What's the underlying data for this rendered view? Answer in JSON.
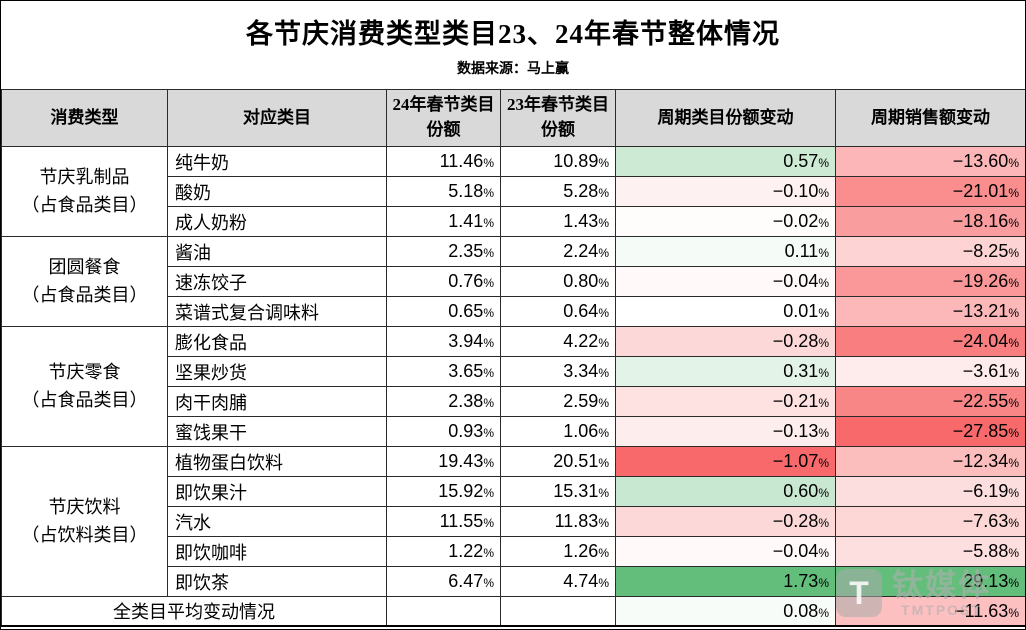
{
  "chart_data": {
    "type": "table",
    "title": "各节庆消费类型类目23、24年春节整体情况",
    "source_note": "数据来源：马上赢",
    "columns": [
      "消费类型",
      "对应类目",
      "24年春节类目份额",
      "23年春节类目份额",
      "周期类目份额变动",
      "周期销售额变动"
    ],
    "groups": [
      {
        "type": "节庆乳制品",
        "type_note": "（占食品类目）",
        "rows": [
          {
            "category": "纯牛奶",
            "share24": 11.46,
            "share23": 10.89,
            "share_change": 0.57,
            "sales_change": -13.6
          },
          {
            "category": "酸奶",
            "share24": 5.18,
            "share23": 5.28,
            "share_change": -0.1,
            "sales_change": -21.01
          },
          {
            "category": "成人奶粉",
            "share24": 1.41,
            "share23": 1.43,
            "share_change": -0.02,
            "sales_change": -18.16
          }
        ]
      },
      {
        "type": "团圆餐食",
        "type_note": "（占食品类目）",
        "rows": [
          {
            "category": "酱油",
            "share24": 2.35,
            "share23": 2.24,
            "share_change": 0.11,
            "sales_change": -8.25
          },
          {
            "category": "速冻饺子",
            "share24": 0.76,
            "share23": 0.8,
            "share_change": -0.04,
            "sales_change": -19.26
          },
          {
            "category": "菜谱式复合调味料",
            "share24": 0.65,
            "share23": 0.64,
            "share_change": 0.01,
            "sales_change": -13.21
          }
        ]
      },
      {
        "type": "节庆零食",
        "type_note": "（占食品类目）",
        "rows": [
          {
            "category": "膨化食品",
            "share24": 3.94,
            "share23": 4.22,
            "share_change": -0.28,
            "sales_change": -24.04
          },
          {
            "category": "坚果炒货",
            "share24": 3.65,
            "share23": 3.34,
            "share_change": 0.31,
            "sales_change": -3.61
          },
          {
            "category": "肉干肉脯",
            "share24": 2.38,
            "share23": 2.59,
            "share_change": -0.21,
            "sales_change": -22.55
          },
          {
            "category": "蜜饯果干",
            "share24": 0.93,
            "share23": 1.06,
            "share_change": -0.13,
            "sales_change": -27.85
          }
        ]
      },
      {
        "type": "节庆饮料",
        "type_note": "（占饮料类目）",
        "rows": [
          {
            "category": "植物蛋白饮料",
            "share24": 19.43,
            "share23": 20.51,
            "share_change": -1.07,
            "sales_change": -12.34
          },
          {
            "category": "即饮果汁",
            "share24": 15.92,
            "share23": 15.31,
            "share_change": 0.6,
            "sales_change": -6.19
          },
          {
            "category": "汽水",
            "share24": 11.55,
            "share23": 11.83,
            "share_change": -0.28,
            "sales_change": -7.63
          },
          {
            "category": "即饮咖啡",
            "share24": 1.22,
            "share23": 1.26,
            "share_change": -0.04,
            "sales_change": -5.88
          },
          {
            "category": "即饮茶",
            "share24": 6.47,
            "share23": 4.74,
            "share_change": 1.73,
            "sales_change": 29.13
          }
        ]
      }
    ],
    "summary": {
      "label": "全类目平均变动情况",
      "share_change": 0.08,
      "sales_change": -11.63
    },
    "conditional_format": {
      "negative_color": "#F8696B",
      "positive_color": "#63BE7B",
      "neutral_color": "#FFFFFF",
      "midpoint": 0
    },
    "layout_hints": {
      "header_bg": "#D9D9D9",
      "border_color": "#2B2B2B",
      "grid": true
    }
  },
  "watermark": {
    "logo_text": "T",
    "name_cn": "钛媒体",
    "name_en": "TMTPOST"
  }
}
